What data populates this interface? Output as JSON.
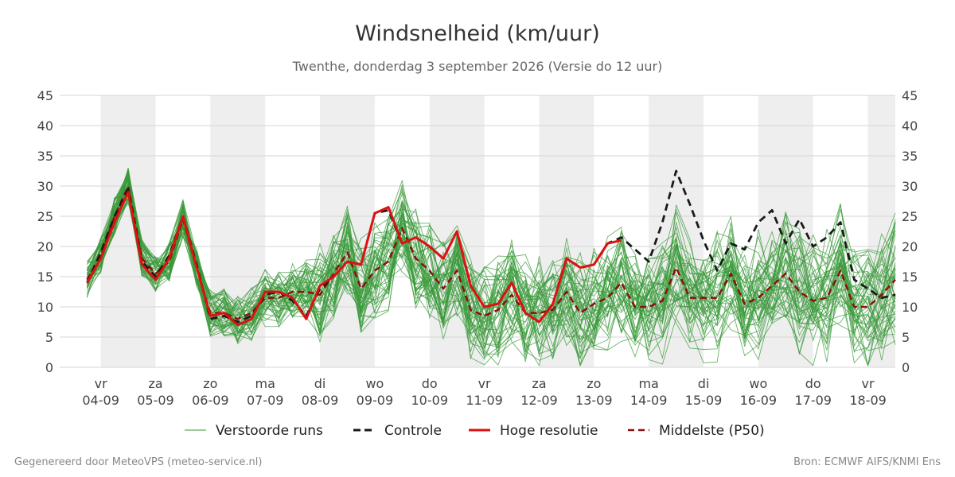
{
  "title": "Windsnelheid (km/uur)",
  "subtitle": "Twenthe, donderdag  3 september 2026 (Versie do 12 uur)",
  "footer_left": "Gegenereerd door MeteoVPS (meteo-service.nl)",
  "footer_right": "Bron: ECMWF AIFS/KNMI Ens",
  "chart_data": {
    "type": "line",
    "ylim": [
      0,
      45
    ],
    "yticks": [
      0,
      5,
      10,
      15,
      20,
      25,
      30,
      35,
      40,
      45
    ],
    "grid": true,
    "xlim_days": [
      -0.75,
      14.5
    ],
    "x_ticks": [
      {
        "day": "vr",
        "date": "04-09"
      },
      {
        "day": "za",
        "date": "05-09"
      },
      {
        "day": "zo",
        "date": "06-09"
      },
      {
        "day": "ma",
        "date": "07-09"
      },
      {
        "day": "di",
        "date": "08-09"
      },
      {
        "day": "wo",
        "date": "09-09"
      },
      {
        "day": "do",
        "date": "10-09"
      },
      {
        "day": "vr",
        "date": "11-09"
      },
      {
        "day": "za",
        "date": "12-09"
      },
      {
        "day": "zo",
        "date": "13-09"
      },
      {
        "day": "ma",
        "date": "14-09"
      },
      {
        "day": "di",
        "date": "15-09"
      },
      {
        "day": "wo",
        "date": "16-09"
      },
      {
        "day": "do",
        "date": "17-09"
      },
      {
        "day": "vr",
        "date": "18-09"
      }
    ],
    "legend": {
      "placement": "bottom",
      "entries": [
        "Verstoorde runs",
        "Controle",
        "Hoge resolutie",
        "Middelste (P50)"
      ]
    },
    "colors": {
      "ensemble": "#3a9a3a",
      "controle": "#1a1a1a",
      "hoge_resolutie": "#dd1111",
      "p50": "#8b1010",
      "shade": "#eeeeee",
      "grid": "#d6d6d6"
    },
    "ensemble_members": 50,
    "series": [
      {
        "name": "Hoge resolutie",
        "points": [
          [
            -0.25,
            14
          ],
          [
            0,
            18
          ],
          [
            0.25,
            24
          ],
          [
            0.5,
            29
          ],
          [
            0.75,
            17
          ],
          [
            1,
            14.5
          ],
          [
            1.25,
            18
          ],
          [
            1.5,
            25
          ],
          [
            1.75,
            16.5
          ],
          [
            2,
            8.5
          ],
          [
            2.25,
            9
          ],
          [
            2.5,
            7
          ],
          [
            2.75,
            8
          ],
          [
            3,
            12.5
          ],
          [
            3.25,
            12.5
          ],
          [
            3.5,
            11.5
          ],
          [
            3.75,
            8
          ],
          [
            4,
            13.5
          ],
          [
            4.25,
            15
          ],
          [
            4.5,
            17.5
          ],
          [
            4.75,
            17
          ],
          [
            5,
            25.5
          ],
          [
            5.25,
            26.5
          ],
          [
            5.5,
            20.5
          ],
          [
            5.75,
            21.5
          ],
          [
            6,
            20
          ],
          [
            6.25,
            18
          ],
          [
            6.5,
            22.5
          ],
          [
            6.75,
            13.5
          ],
          [
            7,
            10
          ],
          [
            7.25,
            10.5
          ],
          [
            7.5,
            14
          ],
          [
            7.75,
            9
          ],
          [
            8,
            7.5
          ],
          [
            8.25,
            10.5
          ],
          [
            8.5,
            18
          ],
          [
            8.75,
            16.5
          ],
          [
            9,
            17
          ],
          [
            9.25,
            20.5
          ],
          [
            9.5,
            21
          ]
        ]
      },
      {
        "name": "Controle",
        "points": [
          [
            -0.25,
            14
          ],
          [
            0,
            19
          ],
          [
            0.25,
            25
          ],
          [
            0.5,
            29.5
          ],
          [
            0.75,
            17.5
          ],
          [
            1,
            15
          ],
          [
            1.25,
            18.5
          ],
          [
            1.5,
            25
          ],
          [
            1.75,
            17
          ],
          [
            2,
            8
          ],
          [
            2.25,
            8.5
          ],
          [
            2.5,
            7.5
          ],
          [
            2.75,
            8.5
          ],
          [
            3,
            12
          ],
          [
            3.25,
            12.5
          ],
          [
            3.5,
            11
          ],
          [
            3.75,
            8.5
          ],
          [
            4,
            13
          ],
          [
            4.25,
            15
          ],
          [
            4.5,
            17.5
          ],
          [
            4.75,
            17
          ],
          [
            5,
            25.5
          ],
          [
            5.25,
            26
          ],
          [
            5.5,
            20.5
          ],
          [
            5.75,
            21.5
          ],
          [
            6,
            20
          ],
          [
            6.25,
            18
          ],
          [
            6.5,
            22.5
          ],
          [
            6.75,
            13.5
          ],
          [
            7,
            10
          ],
          [
            7.25,
            10.5
          ],
          [
            7.5,
            14
          ],
          [
            7.75,
            9
          ],
          [
            8,
            7.5
          ],
          [
            8.25,
            10.5
          ],
          [
            8.5,
            18
          ],
          [
            8.75,
            16.5
          ],
          [
            9,
            17
          ],
          [
            9.25,
            20.5
          ],
          [
            9.5,
            21.5
          ],
          [
            9.75,
            19.5
          ],
          [
            10,
            17.5
          ],
          [
            10.25,
            24
          ],
          [
            10.5,
            32.5
          ],
          [
            10.75,
            27
          ],
          [
            11,
            21
          ],
          [
            11.25,
            16
          ],
          [
            11.5,
            20.5
          ],
          [
            11.75,
            19.5
          ],
          [
            12,
            24
          ],
          [
            12.25,
            26
          ],
          [
            12.5,
            20.5
          ],
          [
            12.75,
            24.5
          ],
          [
            13,
            20
          ],
          [
            13.25,
            21.5
          ],
          [
            13.5,
            24
          ],
          [
            13.75,
            14.5
          ],
          [
            14,
            13
          ],
          [
            14.25,
            11.5
          ],
          [
            14.5,
            12
          ]
        ]
      },
      {
        "name": "Middelste (P50)",
        "points": [
          [
            -0.25,
            14.5
          ],
          [
            0,
            18.5
          ],
          [
            0.25,
            25
          ],
          [
            0.5,
            30
          ],
          [
            0.75,
            18
          ],
          [
            1,
            15.5
          ],
          [
            1.25,
            17.5
          ],
          [
            1.5,
            24.5
          ],
          [
            1.75,
            16.5
          ],
          [
            2,
            9
          ],
          [
            2.25,
            9
          ],
          [
            2.5,
            8
          ],
          [
            2.75,
            9
          ],
          [
            3,
            11.5
          ],
          [
            3.25,
            11.5
          ],
          [
            3.5,
            12.5
          ],
          [
            3.75,
            12.5
          ],
          [
            4,
            12
          ],
          [
            4.25,
            15.5
          ],
          [
            4.5,
            19
          ],
          [
            4.75,
            13
          ],
          [
            5,
            16
          ],
          [
            5.25,
            17.5
          ],
          [
            5.5,
            23
          ],
          [
            5.75,
            18
          ],
          [
            6,
            16
          ],
          [
            6.25,
            13
          ],
          [
            6.5,
            16
          ],
          [
            6.75,
            9.5
          ],
          [
            7,
            8.5
          ],
          [
            7.25,
            9.5
          ],
          [
            7.5,
            12
          ],
          [
            7.75,
            9
          ],
          [
            8,
            9
          ],
          [
            8.25,
            9.5
          ],
          [
            8.5,
            12.5
          ],
          [
            8.75,
            9
          ],
          [
            9,
            10.5
          ],
          [
            9.25,
            11.5
          ],
          [
            9.5,
            14
          ],
          [
            9.75,
            10
          ],
          [
            10,
            10
          ],
          [
            10.25,
            11
          ],
          [
            10.5,
            16.5
          ],
          [
            10.75,
            11.5
          ],
          [
            11,
            11.5
          ],
          [
            11.25,
            11.5
          ],
          [
            11.5,
            15.5
          ],
          [
            11.75,
            10.5
          ],
          [
            12,
            11.5
          ],
          [
            12.25,
            13.5
          ],
          [
            12.5,
            15.5
          ],
          [
            12.75,
            12.5
          ],
          [
            13,
            11
          ],
          [
            13.25,
            11.5
          ],
          [
            13.5,
            16
          ],
          [
            13.75,
            10
          ],
          [
            14,
            10
          ],
          [
            14.25,
            12
          ],
          [
            14.5,
            14.5
          ]
        ]
      }
    ]
  }
}
